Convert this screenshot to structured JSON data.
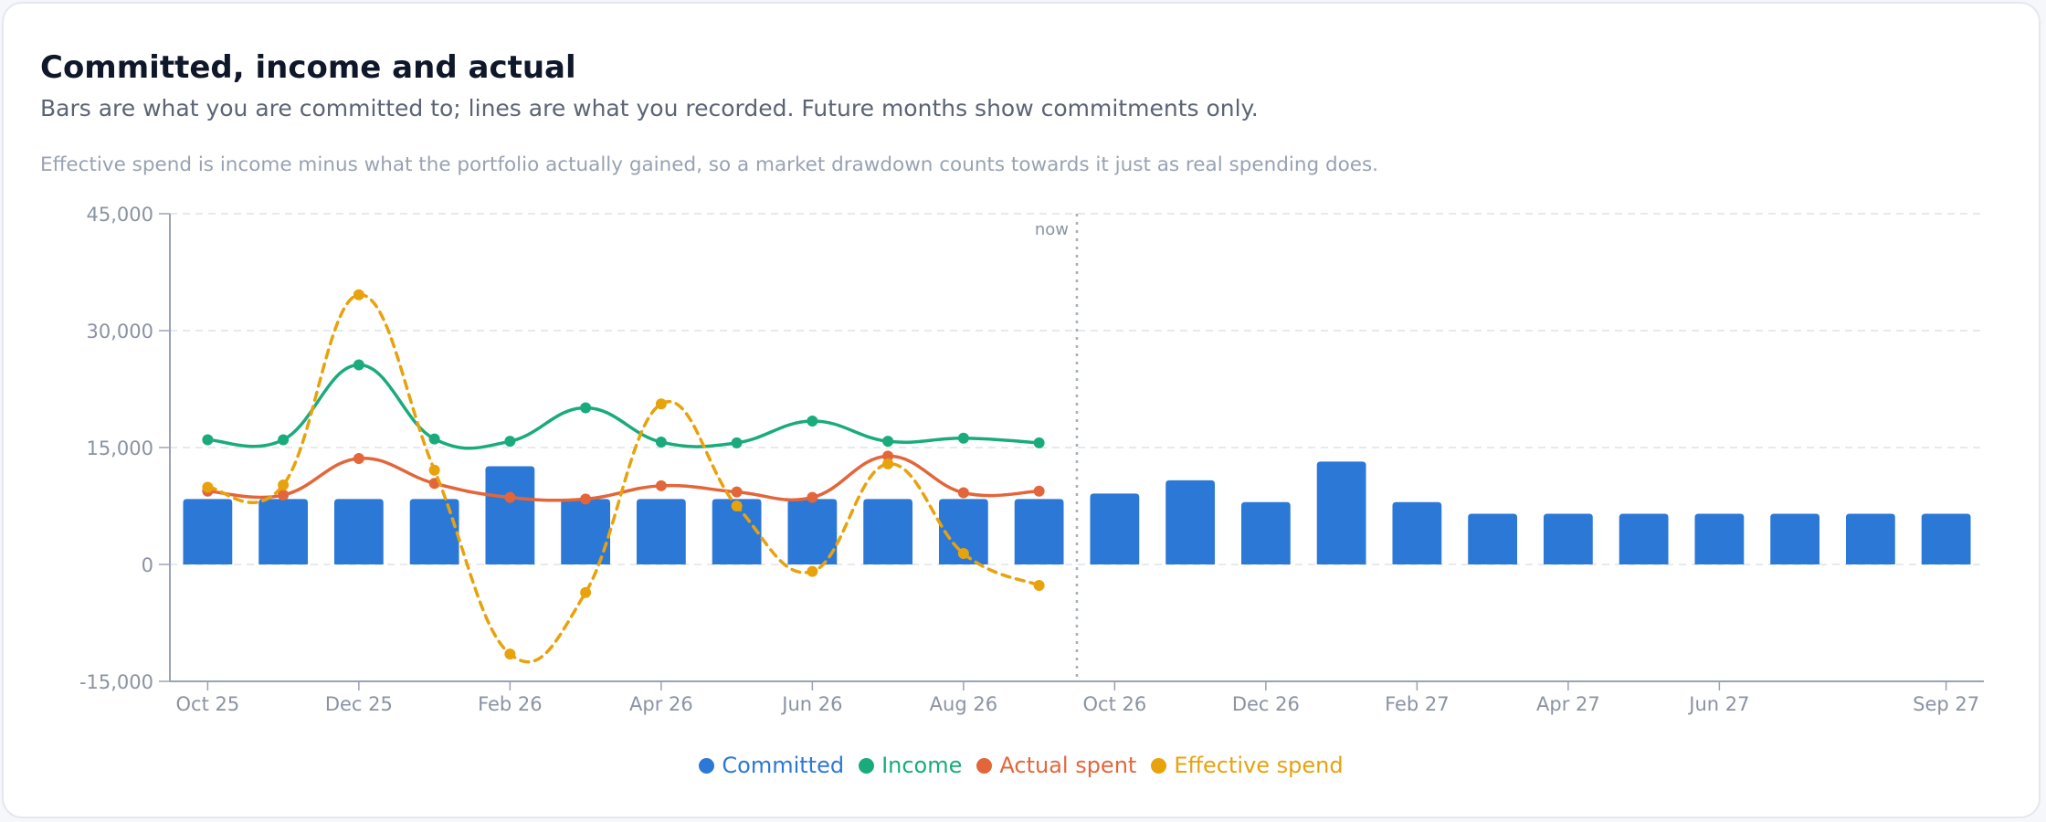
{
  "card": {
    "title": "Committed, income and actual",
    "subtitle": "Bars are what you are committed to; lines are what you recorded. Future months show commitments only.",
    "note": "Effective spend is income minus what the portfolio actually gained, so a market drawdown counts towards it just as real spending does."
  },
  "chart_data": {
    "type": "bar",
    "months": [
      "Oct 25",
      "Nov 25",
      "Dec 25",
      "Jan 26",
      "Feb 26",
      "Mar 26",
      "Apr 26",
      "May 26",
      "Jun 26",
      "Jul 26",
      "Aug 26",
      "Sep 26",
      "Oct 26",
      "Nov 26",
      "Dec 26",
      "Jan 27",
      "Feb 27",
      "Mar 27",
      "Apr 27",
      "May 27",
      "Jun 27",
      "Jul 27",
      "Aug 27",
      "Sep 27"
    ],
    "tick_labels": [
      "Oct 25",
      "Dec 25",
      "Feb 26",
      "Apr 26",
      "Jun 26",
      "Aug 26",
      "Oct 26",
      "Dec 26",
      "Feb 27",
      "Apr 27",
      "Jun 27",
      "Sep 27"
    ],
    "y_ticks": [
      "45,000",
      "30,000",
      "15,000",
      "0",
      "-15,000"
    ],
    "ylim": [
      -15000,
      45000
    ],
    "grid": true,
    "now_label": "now",
    "now_after_month": "Sep 26",
    "series": [
      {
        "name": "Committed",
        "kind": "bar",
        "color": "#2c78d6",
        "values": [
          8400,
          8400,
          8400,
          8400,
          12600,
          8400,
          8400,
          8400,
          8400,
          8400,
          8400,
          8400,
          9100,
          10800,
          8000,
          13200,
          8000,
          6500,
          6500,
          6500,
          6500,
          6500,
          6500,
          6500
        ]
      },
      {
        "name": "Income",
        "kind": "line",
        "color": "#1aab7c",
        "values": [
          16000,
          16000,
          25600,
          16100,
          15800,
          20100,
          15700,
          15600,
          18400,
          15800,
          16200,
          15600
        ]
      },
      {
        "name": "Actual spent",
        "kind": "line",
        "color": "#e3663a",
        "values": [
          9400,
          8900,
          13600,
          10400,
          8600,
          8400,
          10100,
          9300,
          8600,
          13900,
          9200,
          9400
        ]
      },
      {
        "name": "Effective spend",
        "kind": "dashed-line",
        "color": "#e8a20c",
        "values": [
          9900,
          10200,
          34600,
          12100,
          -11500,
          -3600,
          20600,
          7500,
          -900,
          12900,
          1400,
          -2700
        ]
      }
    ]
  }
}
